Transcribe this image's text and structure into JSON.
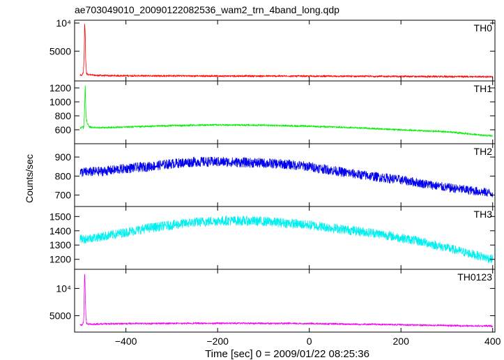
{
  "title": "ae703049010_20090122082536_wam2_trn_4band_long.qdp",
  "xlabel": "Time [sec] 0 = 2009/01/22 08:25:36",
  "ylabel": "Counts/sec",
  "chart_data": {
    "type": "line",
    "title": "ae703049010_20090122082536_wam2_trn_4band_long.qdp",
    "xlabel": "Time [sec] 0 = 2009/01/22 08:25:36",
    "ylabel": "Counts/sec",
    "xlim": [
      -512,
      405
    ],
    "x_ticks": [
      -400,
      -200,
      0,
      200,
      400
    ],
    "x_tick_labels": [
      "−400",
      "−200",
      "0",
      "200",
      "400"
    ],
    "grid": false,
    "panels": [
      {
        "name": "TH0",
        "color": "#ff0000",
        "ylim": [
          -300,
          10500
        ],
        "y_ticks": [
          5000,
          10000
        ],
        "y_tick_labels": [
          "5000",
          "10⁴"
        ],
        "series": {
          "x": [
            -500,
            -496,
            -493,
            -491,
            -490,
            -489,
            -488,
            -487,
            -486,
            -484,
            -480,
            -470,
            -450,
            -400,
            -300,
            -200,
            -100,
            0,
            100,
            200,
            300,
            400
          ],
          "y": [
            700,
            700,
            1200,
            4500,
            10200,
            8500,
            4000,
            2200,
            1200,
            950,
            800,
            700,
            650,
            620,
            600,
            580,
            570,
            550,
            530,
            500,
            470,
            450
          ]
        }
      },
      {
        "name": "TH1",
        "color": "#00ee00",
        "ylim": [
          400,
          1300
        ],
        "y_ticks": [
          600,
          800,
          1000,
          1200
        ],
        "y_tick_labels": [
          "600",
          "800",
          "1000",
          "1200"
        ],
        "series": {
          "x": [
            -500,
            -495,
            -492,
            -490,
            -489,
            -488,
            -487,
            -485,
            -480,
            -460,
            -400,
            -300,
            -200,
            -100,
            0,
            100,
            200,
            300,
            350,
            400
          ],
          "y": [
            620,
            640,
            650,
            900,
            1280,
            1050,
            800,
            700,
            640,
            630,
            640,
            660,
            670,
            665,
            650,
            630,
            600,
            570,
            540,
            510
          ]
        }
      },
      {
        "name": "TH2",
        "color": "#0000ee",
        "ylim": [
          640,
          970
        ],
        "y_ticks": [
          700,
          800,
          900
        ],
        "y_tick_labels": [
          "700",
          "800",
          "900"
        ],
        "series": {
          "x": [
            -500,
            -450,
            -400,
            -350,
            -300,
            -250,
            -200,
            -150,
            -100,
            -50,
            0,
            50,
            100,
            150,
            200,
            250,
            300,
            350,
            400
          ],
          "y": [
            820,
            825,
            840,
            850,
            865,
            875,
            875,
            872,
            868,
            862,
            850,
            830,
            810,
            795,
            780,
            760,
            740,
            725,
            710
          ]
        }
      },
      {
        "name": "TH3",
        "color": "#00f0f0",
        "ylim": [
          1130,
          1570
        ],
        "y_ticks": [
          1200,
          1300,
          1400,
          1500
        ],
        "y_tick_labels": [
          "1200",
          "1300",
          "1400",
          "1500"
        ],
        "series": {
          "x": [
            -500,
            -450,
            -400,
            -350,
            -300,
            -250,
            -200,
            -150,
            -100,
            -50,
            0,
            50,
            100,
            150,
            200,
            250,
            300,
            350,
            400
          ],
          "y": [
            1340,
            1360,
            1390,
            1420,
            1440,
            1460,
            1470,
            1470,
            1465,
            1455,
            1440,
            1420,
            1400,
            1380,
            1350,
            1320,
            1280,
            1240,
            1200
          ]
        }
      },
      {
        "name": "TH0123",
        "color": "#ee00ee",
        "ylim": [
          2000,
          13500
        ],
        "y_ticks": [
          5000,
          10000
        ],
        "y_tick_labels": [
          "5000",
          "10⁴"
        ],
        "series": {
          "x": [
            -500,
            -495,
            -492,
            -491,
            -490,
            -489,
            -488,
            -487,
            -486,
            -484,
            -480,
            -470,
            -450,
            -400,
            -300,
            -200,
            -100,
            0,
            100,
            200,
            300,
            400
          ],
          "y": [
            3300,
            3300,
            4000,
            9000,
            13200,
            10000,
            6500,
            4300,
            3700,
            3500,
            3450,
            3450,
            3500,
            3550,
            3600,
            3620,
            3600,
            3550,
            3450,
            3350,
            3200,
            3100
          ]
        }
      }
    ]
  }
}
